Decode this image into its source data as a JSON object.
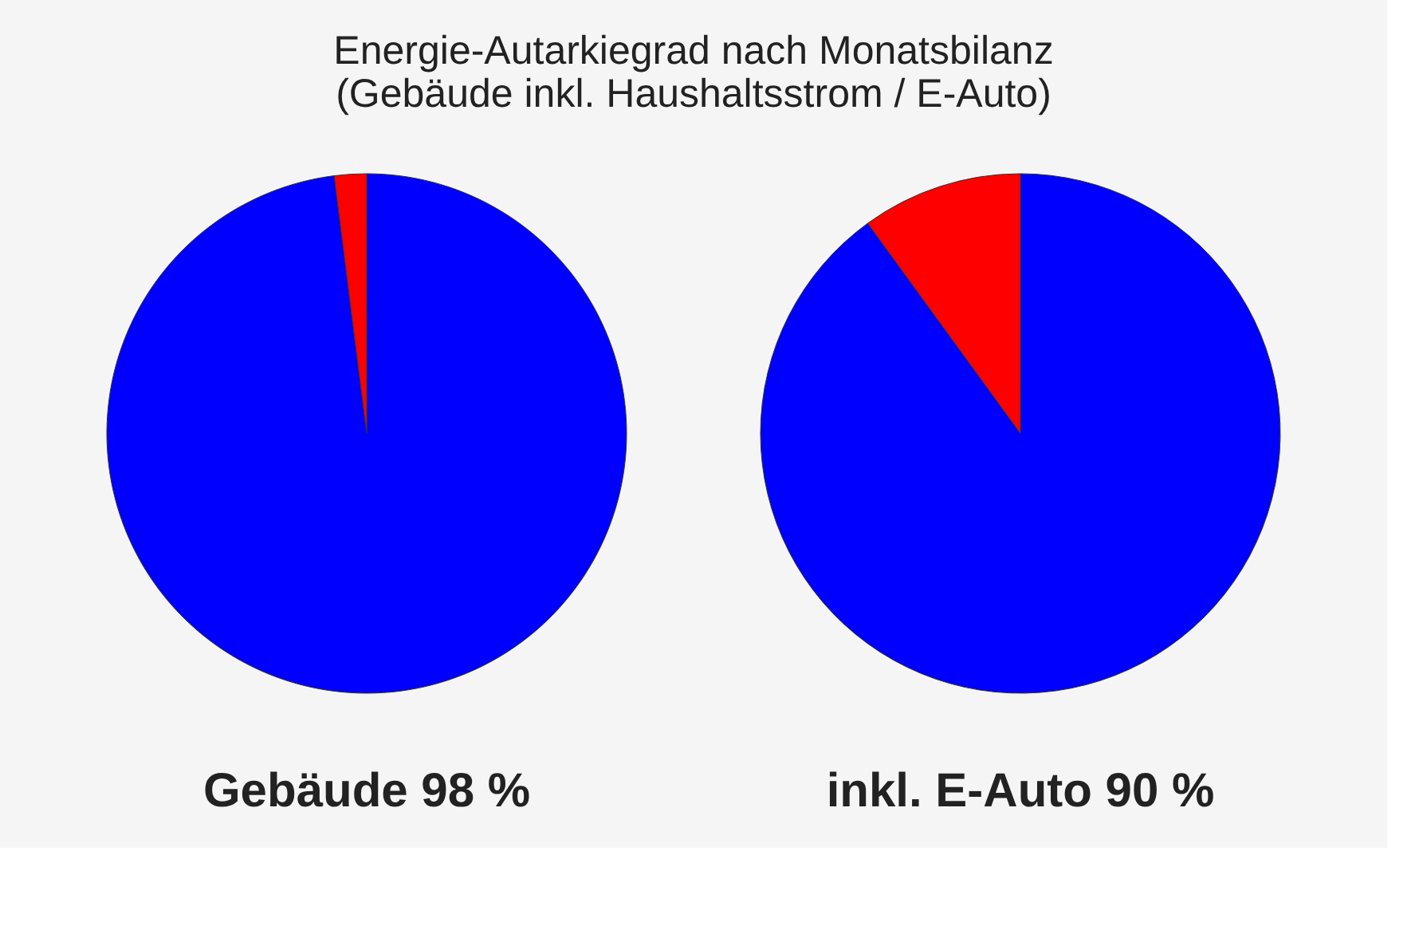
{
  "chart_data": [
    {
      "type": "pie",
      "title": "Energie-Autarkiegrad nach Monatsbilanz",
      "subtitle": "(Gebäude inkl. Haushaltsstrom / E-Auto)",
      "xlabel": "Gebäude 98 %",
      "categories": [
        null,
        null
      ],
      "values": [
        98,
        2
      ],
      "colors": [
        "#0000ff",
        "#ff0000"
      ]
    },
    {
      "type": "pie",
      "xlabel": "inkl. E-Auto 90 %",
      "categories": [
        null,
        null
      ],
      "values": [
        90,
        10
      ],
      "colors": [
        "#0000ff",
        "#ff0000"
      ]
    }
  ]
}
